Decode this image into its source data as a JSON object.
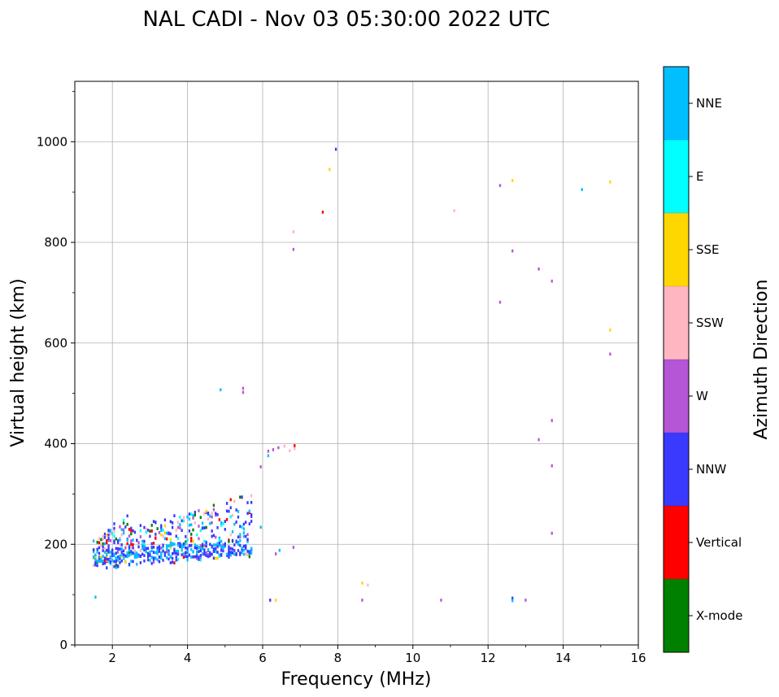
{
  "chart_data": {
    "type": "scatter",
    "title": "NAL CADI - Nov 03 05:30:00 2022 UTC",
    "xlabel": "Frequency (MHz)",
    "ylabel": "Virtual height (km)",
    "xlim": [
      1,
      16
    ],
    "ylim": [
      0,
      1120
    ],
    "xticks": [
      2,
      4,
      6,
      8,
      10,
      12,
      14,
      16
    ],
    "yticks": [
      0,
      200,
      400,
      600,
      800,
      1000
    ],
    "grid": true,
    "colorbar": {
      "label": "Azimuth Direction",
      "categories": [
        {
          "name": "X-mode",
          "color": "#008000"
        },
        {
          "name": "Vertical",
          "color": "#ff0000"
        },
        {
          "name": "NNW",
          "color": "#3a3aff"
        },
        {
          "name": "W",
          "color": "#b556d6"
        },
        {
          "name": "SSW",
          "color": "#ffb6c1"
        },
        {
          "name": "SSE",
          "color": "#ffd700"
        },
        {
          "name": "E",
          "color": "#00ffff"
        },
        {
          "name": "NNE",
          "color": "#00bfff"
        }
      ]
    },
    "echo_width_mhz": 0.05,
    "echo_height_km": 6,
    "echoes": [
      {
        "f": 7.95,
        "h": 985,
        "d": "NNW"
      },
      {
        "f": 7.78,
        "h": 945,
        "d": "SSE"
      },
      {
        "f": 7.6,
        "h": 860,
        "d": "Vertical"
      },
      {
        "f": 6.82,
        "h": 821,
        "d": "SSW"
      },
      {
        "f": 6.82,
        "h": 786,
        "d": "W"
      },
      {
        "f": 11.1,
        "h": 863,
        "d": "SSW"
      },
      {
        "f": 12.32,
        "h": 913,
        "d": "W"
      },
      {
        "f": 12.65,
        "h": 923,
        "d": "SSE"
      },
      {
        "f": 14.5,
        "h": 905,
        "d": "NNE"
      },
      {
        "f": 15.25,
        "h": 920,
        "d": "SSE"
      },
      {
        "f": 12.65,
        "h": 783,
        "d": "W"
      },
      {
        "f": 13.35,
        "h": 747,
        "d": "W"
      },
      {
        "f": 13.7,
        "h": 723,
        "d": "W"
      },
      {
        "f": 12.32,
        "h": 681,
        "d": "W"
      },
      {
        "f": 15.25,
        "h": 626,
        "d": "SSE"
      },
      {
        "f": 15.25,
        "h": 578,
        "d": "W"
      },
      {
        "f": 4.88,
        "h": 507,
        "d": "NNE"
      },
      {
        "f": 5.48,
        "h": 502,
        "d": "W"
      },
      {
        "f": 5.48,
        "h": 510,
        "d": "W"
      },
      {
        "f": 13.7,
        "h": 446,
        "d": "W"
      },
      {
        "f": 13.35,
        "h": 408,
        "d": "W"
      },
      {
        "f": 13.7,
        "h": 356,
        "d": "W"
      },
      {
        "f": 13.7,
        "h": 222,
        "d": "W"
      },
      {
        "f": 6.15,
        "h": 385,
        "d": "W"
      },
      {
        "f": 6.28,
        "h": 388,
        "d": "W"
      },
      {
        "f": 6.42,
        "h": 392,
        "d": "W"
      },
      {
        "f": 6.15,
        "h": 376,
        "d": "NNE"
      },
      {
        "f": 6.58,
        "h": 395,
        "d": "SSW"
      },
      {
        "f": 6.72,
        "h": 386,
        "d": "SSW"
      },
      {
        "f": 6.85,
        "h": 390,
        "d": "SSW"
      },
      {
        "f": 6.85,
        "h": 396,
        "d": "Vertical"
      },
      {
        "f": 5.95,
        "h": 354,
        "d": "W"
      },
      {
        "f": 5.95,
        "h": 234,
        "d": "NNE"
      },
      {
        "f": 6.82,
        "h": 194,
        "d": "W"
      },
      {
        "f": 6.45,
        "h": 188,
        "d": "NNE"
      },
      {
        "f": 6.35,
        "h": 181,
        "d": "W"
      },
      {
        "f": 6.2,
        "h": 89,
        "d": "NNW"
      },
      {
        "f": 6.35,
        "h": 89,
        "d": "SSE"
      },
      {
        "f": 8.65,
        "h": 123,
        "d": "SSE"
      },
      {
        "f": 8.8,
        "h": 119,
        "d": "SSW"
      },
      {
        "f": 8.65,
        "h": 89,
        "d": "W"
      },
      {
        "f": 10.75,
        "h": 89,
        "d": "W"
      },
      {
        "f": 12.65,
        "h": 93,
        "d": "NNW"
      },
      {
        "f": 12.65,
        "h": 88,
        "d": "NNE"
      },
      {
        "f": 13.0,
        "h": 89,
        "d": "W"
      },
      {
        "f": 1.55,
        "h": 95,
        "d": "NNE"
      }
    ]
  }
}
